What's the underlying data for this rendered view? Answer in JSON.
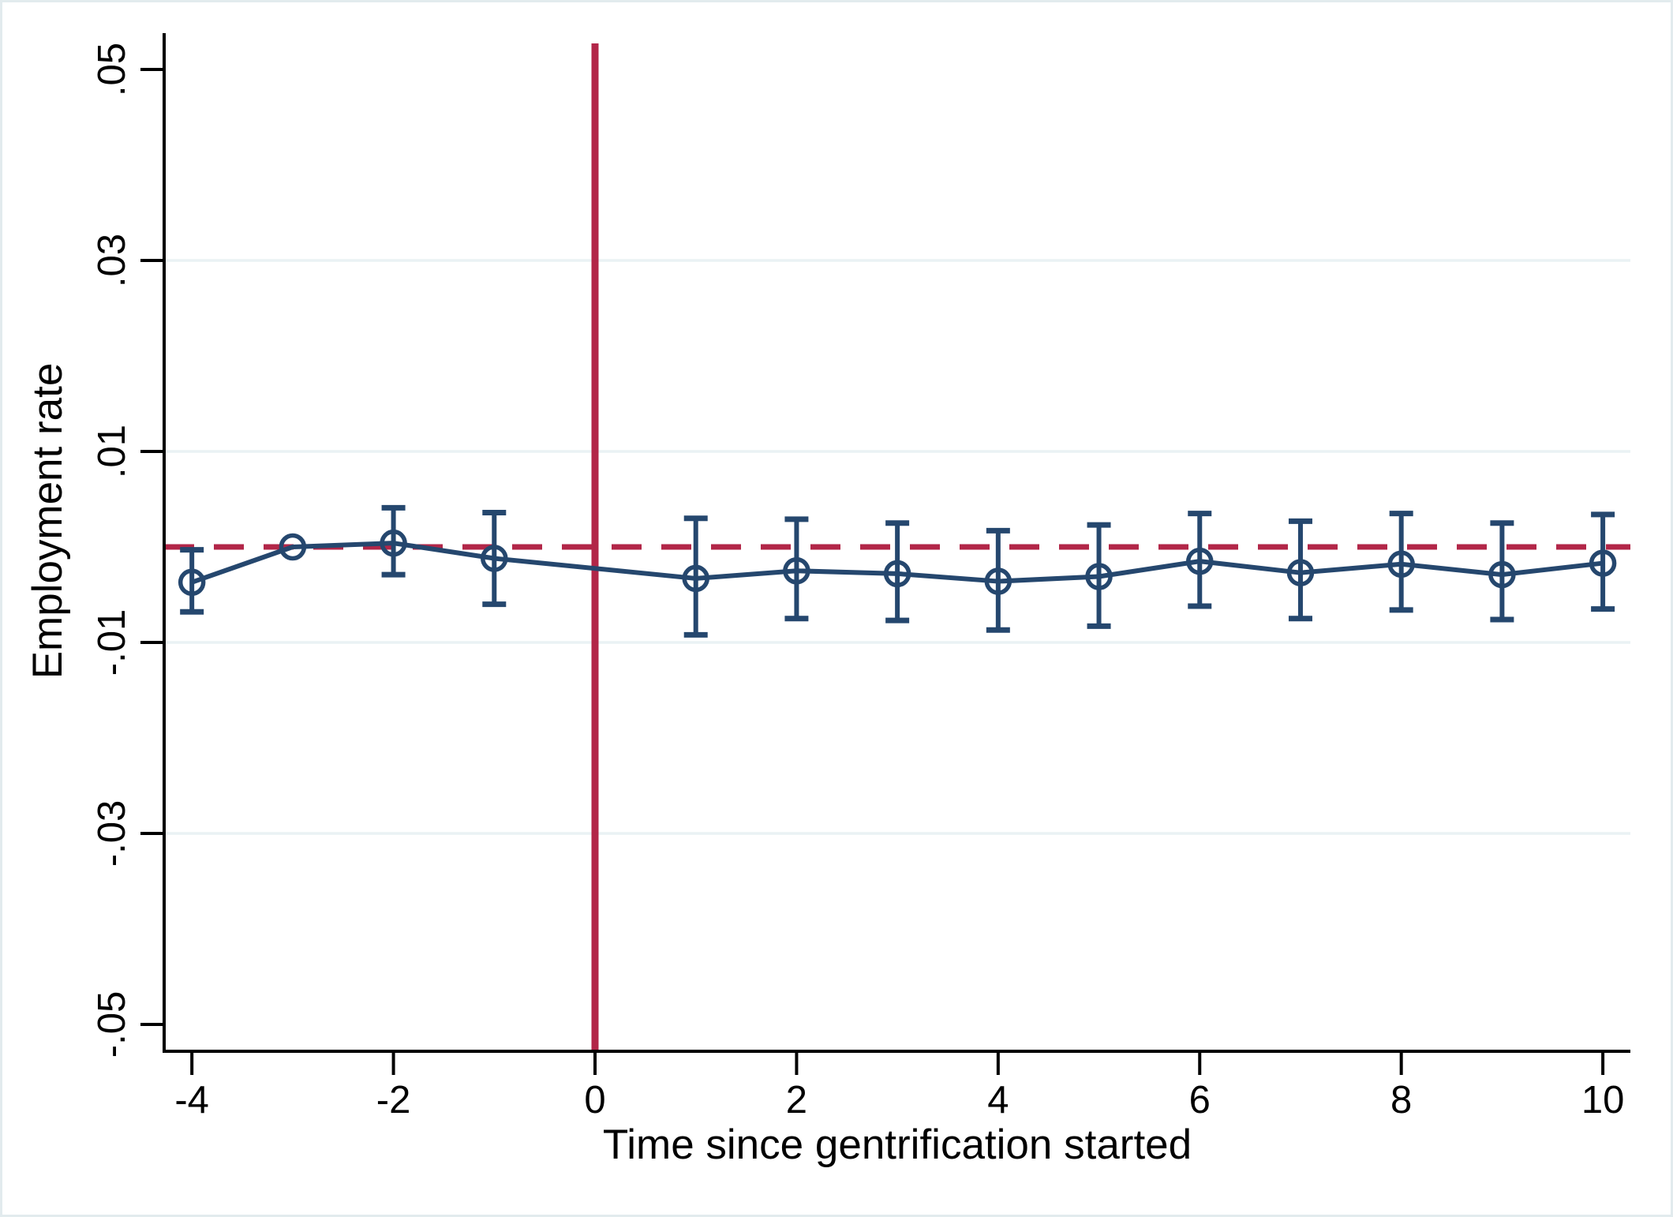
{
  "figure": {
    "background": "#ffffff",
    "border_color": "#e2ebee"
  },
  "chart_data": {
    "type": "line",
    "subtype": "event-study-with-confidence-intervals",
    "title": "",
    "xlabel": "Time since gentrification started",
    "ylabel": "Employment rate",
    "xlim": [
      -4.28,
      10.28
    ],
    "ylim": [
      -0.0535,
      0.0535
    ],
    "grid": "horizontal-only",
    "legend": "none",
    "x_ticks": [
      {
        "label": "-4",
        "value": -4
      },
      {
        "label": "-2",
        "value": -2
      },
      {
        "label": "0",
        "value": 0
      },
      {
        "label": "2",
        "value": 2
      },
      {
        "label": "4",
        "value": 4
      },
      {
        "label": "6",
        "value": 6
      },
      {
        "label": "8",
        "value": 8
      },
      {
        "label": "10",
        "value": 10
      }
    ],
    "y_ticks": [
      {
        "label": ".05",
        "value": 0.05
      },
      {
        "label": ".03",
        "value": 0.03
      },
      {
        "label": ".01",
        "value": 0.01
      },
      {
        "label": "-.01",
        "value": -0.01
      },
      {
        "label": "-.03",
        "value": -0.03
      },
      {
        "label": "-.05",
        "value": -0.05
      }
    ],
    "gridline_values": [
      0.03,
      0.01,
      -0.01,
      -0.03
    ],
    "reference_lines": {
      "vertical_x": 0,
      "vertical_style": "solid",
      "horizontal_y": 0,
      "horizontal_style": "dashed",
      "color": "#b22648"
    },
    "series": [
      {
        "name": "estimate-with-95ci",
        "marker": "hollow-circle",
        "color": "#25476e",
        "points": [
          {
            "t": -4,
            "estimate": -0.0037,
            "ci_low": -0.0068,
            "ci_high": -0.0003
          },
          {
            "t": -3,
            "estimate": 0.0,
            "ci_low": null,
            "ci_high": null,
            "reference": true
          },
          {
            "t": -2,
            "estimate": 0.0004,
            "ci_low": -0.0029,
            "ci_high": 0.0041
          },
          {
            "t": -1,
            "estimate": -0.0012,
            "ci_low": -0.006,
            "ci_high": 0.0036
          },
          {
            "t": 1,
            "estimate": -0.0033,
            "ci_low": -0.0092,
            "ci_high": 0.003
          },
          {
            "t": 2,
            "estimate": -0.0025,
            "ci_low": -0.0075,
            "ci_high": 0.0029
          },
          {
            "t": 3,
            "estimate": -0.0028,
            "ci_low": -0.0077,
            "ci_high": 0.0025
          },
          {
            "t": 4,
            "estimate": -0.0036,
            "ci_low": -0.0087,
            "ci_high": 0.0017
          },
          {
            "t": 5,
            "estimate": -0.0031,
            "ci_low": -0.0083,
            "ci_high": 0.0023
          },
          {
            "t": 6,
            "estimate": -0.0015,
            "ci_low": -0.0062,
            "ci_high": 0.0035
          },
          {
            "t": 7,
            "estimate": -0.0027,
            "ci_low": -0.0075,
            "ci_high": 0.0027
          },
          {
            "t": 8,
            "estimate": -0.0018,
            "ci_low": -0.0066,
            "ci_high": 0.0035
          },
          {
            "t": 9,
            "estimate": -0.0029,
            "ci_low": -0.0076,
            "ci_high": 0.0025
          },
          {
            "t": 10,
            "estimate": -0.0017,
            "ci_low": -0.0065,
            "ci_high": 0.0034
          }
        ]
      }
    ],
    "colors": {
      "series": "#25476e",
      "reference": "#b22648",
      "grid": "#eaf2f4",
      "axis": "#000000"
    }
  }
}
